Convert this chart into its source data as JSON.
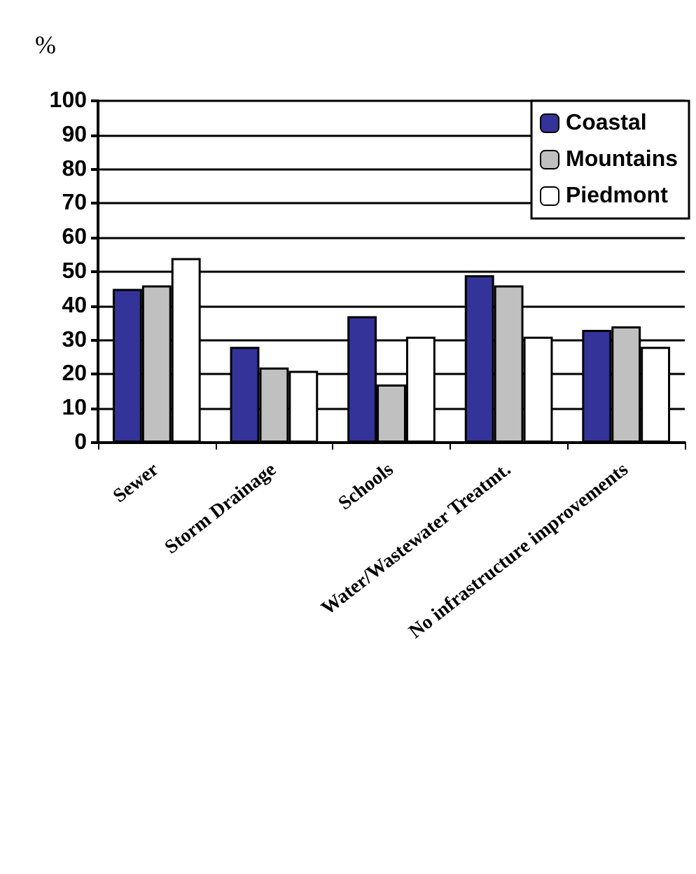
{
  "chart_data": {
    "type": "bar",
    "ylabel": "%",
    "categories": [
      "Sewer",
      "Storm Drainage",
      "Schools",
      "Water/Wastewater Treatmt.",
      "No infrastructure improvements"
    ],
    "series": [
      {
        "name": "Coastal",
        "color": "#333399",
        "values": [
          45,
          28,
          37,
          49,
          33
        ]
      },
      {
        "name": "Mountains",
        "color": "#c0c0c0",
        "values": [
          46,
          22,
          17,
          46,
          34
        ]
      },
      {
        "name": "Piedmont",
        "color": "#ffffff",
        "values": [
          54,
          21,
          31,
          31,
          28
        ]
      }
    ],
    "ylim": [
      0,
      100
    ],
    "yticks": [
      0,
      10,
      20,
      30,
      40,
      50,
      60,
      70,
      80,
      90,
      100
    ],
    "grid": "y",
    "legend": "top right"
  }
}
